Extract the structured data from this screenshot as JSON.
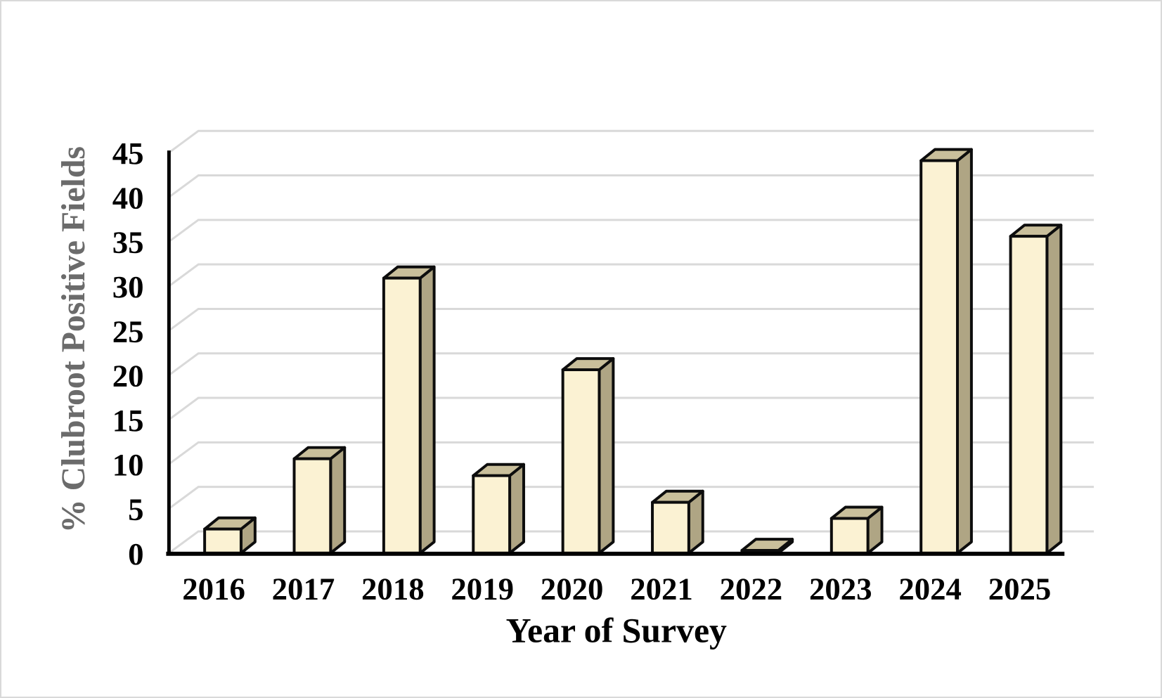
{
  "chart_data": {
    "type": "bar",
    "projection": "3d",
    "title": "",
    "xlabel": "Year of Survey",
    "ylabel": "% Clubroot Positive Fields",
    "categories": [
      "2016",
      "2017",
      "2018",
      "2019",
      "2020",
      "2021",
      "2022",
      "2023",
      "2024",
      "2025"
    ],
    "values": [
      2.7,
      10.6,
      30.9,
      8.7,
      20.6,
      5.7,
      0.3,
      3.9,
      44.1,
      35.6
    ],
    "ylim": [
      0,
      45
    ],
    "ytick_step": 5,
    "ytick_labels": [
      "0",
      "5",
      "10",
      "15",
      "20",
      "25",
      "30",
      "35",
      "40",
      "45"
    ],
    "grid": true,
    "legend_position": "none",
    "colors": {
      "bar_front": "#fbf2d3",
      "bar_top": "#c9bf9b",
      "bar_side": "#afa584",
      "bar_outline": "#0d0d0d",
      "gridline": "#d9d9d9",
      "axis": "#000000",
      "y_title": "#6b6b6b",
      "tick_label": "#000000",
      "background": "#ffffff",
      "frame_border": "#d9d9d9"
    }
  }
}
